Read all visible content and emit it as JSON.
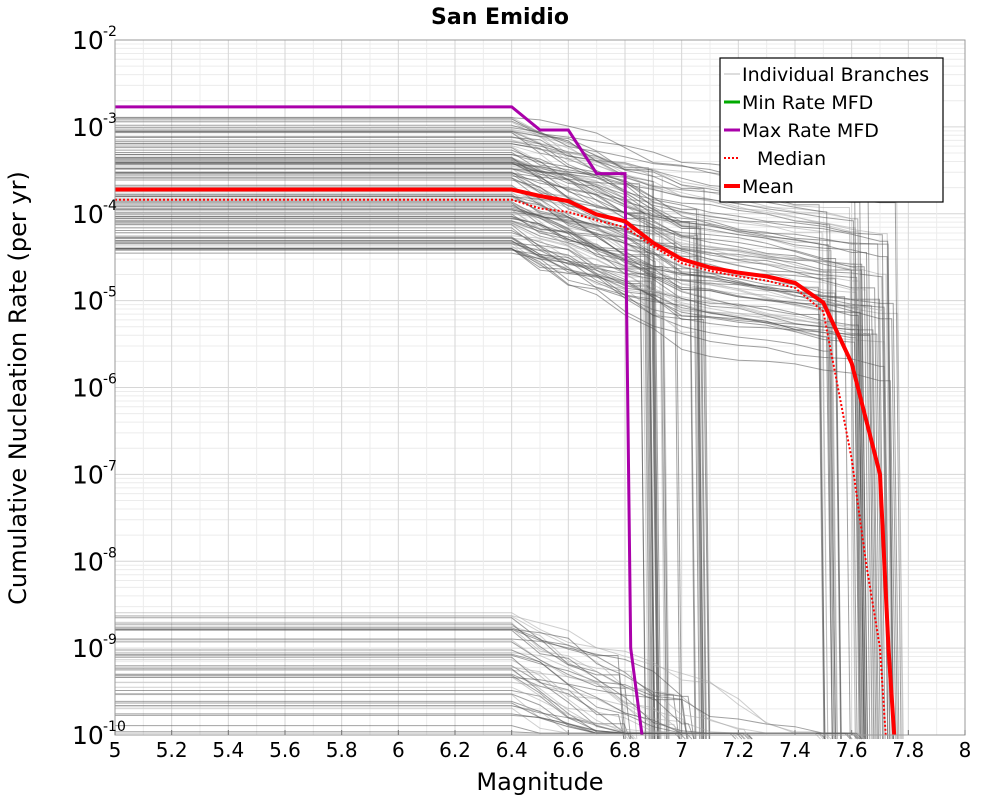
{
  "chart_data": {
    "type": "line",
    "title": "San Emidio",
    "xlabel": "Magnitude",
    "ylabel": "Cumulative Nucleation Rate (per yr)",
    "xlim": [
      5,
      8
    ],
    "ylim": [
      1e-10,
      0.01
    ],
    "yscale": "log",
    "grid": true,
    "x_ticks": [
      "5",
      "5.2",
      "5.4",
      "5.6",
      "5.8",
      "6",
      "6.2",
      "6.4",
      "6.6",
      "6.8",
      "7",
      "7.2",
      "7.4",
      "7.6",
      "7.8",
      "8"
    ],
    "y_ticks": [
      {
        "base": "10",
        "exp": "-2"
      },
      {
        "base": "10",
        "exp": "-3"
      },
      {
        "base": "10",
        "exp": "-4"
      },
      {
        "base": "10",
        "exp": "-5"
      },
      {
        "base": "10",
        "exp": "-6"
      },
      {
        "base": "10",
        "exp": "-7"
      },
      {
        "base": "10",
        "exp": "-8"
      },
      {
        "base": "10",
        "exp": "-9"
      },
      {
        "base": "10",
        "exp": "-10"
      }
    ],
    "legend_position": "top-right",
    "legend": [
      {
        "label": "Individual Branches",
        "color": "#bbbbbb",
        "style": "solid-thin"
      },
      {
        "label": "Min Rate MFD",
        "color": "#00aa00",
        "style": "solid"
      },
      {
        "label": "Max Rate MFD",
        "color": "#aa00aa",
        "style": "solid"
      },
      {
        "label": "Median",
        "color": "#ff0000",
        "style": "dotted"
      },
      {
        "label": "Mean",
        "color": "#ff0000",
        "style": "solid-thick"
      }
    ],
    "series": [
      {
        "name": "Max Rate MFD",
        "color": "#aa00aa",
        "x": [
          5.0,
          6.4,
          6.5,
          6.6,
          6.7,
          6.8,
          6.82,
          6.86
        ],
        "y": [
          0.0017,
          0.0017,
          0.00092,
          0.00092,
          0.00029,
          0.00029,
          1e-09,
          1e-10
        ]
      },
      {
        "name": "Median",
        "color": "#ff0000",
        "x": [
          5.0,
          6.4,
          6.5,
          6.6,
          6.7,
          6.8,
          6.9,
          7.0,
          7.1,
          7.2,
          7.3,
          7.4,
          7.5,
          7.6,
          7.65,
          7.7,
          7.72
        ],
        "y": [
          0.000145,
          0.000145,
          0.000115,
          0.000105,
          8.4e-05,
          7e-05,
          4.2e-05,
          2.7e-05,
          2.2e-05,
          1.9e-05,
          1.7e-05,
          1.4e-05,
          7.5e-06,
          1.5e-07,
          1e-08,
          1e-09,
          1e-10
        ]
      },
      {
        "name": "Mean",
        "color": "#ff0000",
        "x": [
          5.0,
          6.4,
          6.5,
          6.6,
          6.7,
          6.8,
          6.9,
          7.0,
          7.1,
          7.2,
          7.3,
          7.4,
          7.5,
          7.6,
          7.7,
          7.73,
          7.75
        ],
        "y": [
          0.00019,
          0.00019,
          0.00016,
          0.00014,
          9.8e-05,
          8.2e-05,
          4.6e-05,
          3e-05,
          2.4e-05,
          2.1e-05,
          1.9e-05,
          1.6e-05,
          9.5e-06,
          1.9e-06,
          1e-07,
          1e-09,
          1e-10
        ]
      }
    ],
    "branch_bands": [
      {
        "y_low": 3.5e-05,
        "y_high": 0.0013,
        "drop_mags": [
          6.88,
          6.95,
          7.05,
          7.5,
          7.53,
          7.6,
          7.64,
          7.7,
          7.74
        ],
        "count": 120
      },
      {
        "y_low": 1e-10,
        "y_high": 2.6e-09,
        "drop_mags": [
          6.8,
          7.0,
          7.2,
          7.5,
          7.6
        ],
        "count": 45
      }
    ]
  }
}
